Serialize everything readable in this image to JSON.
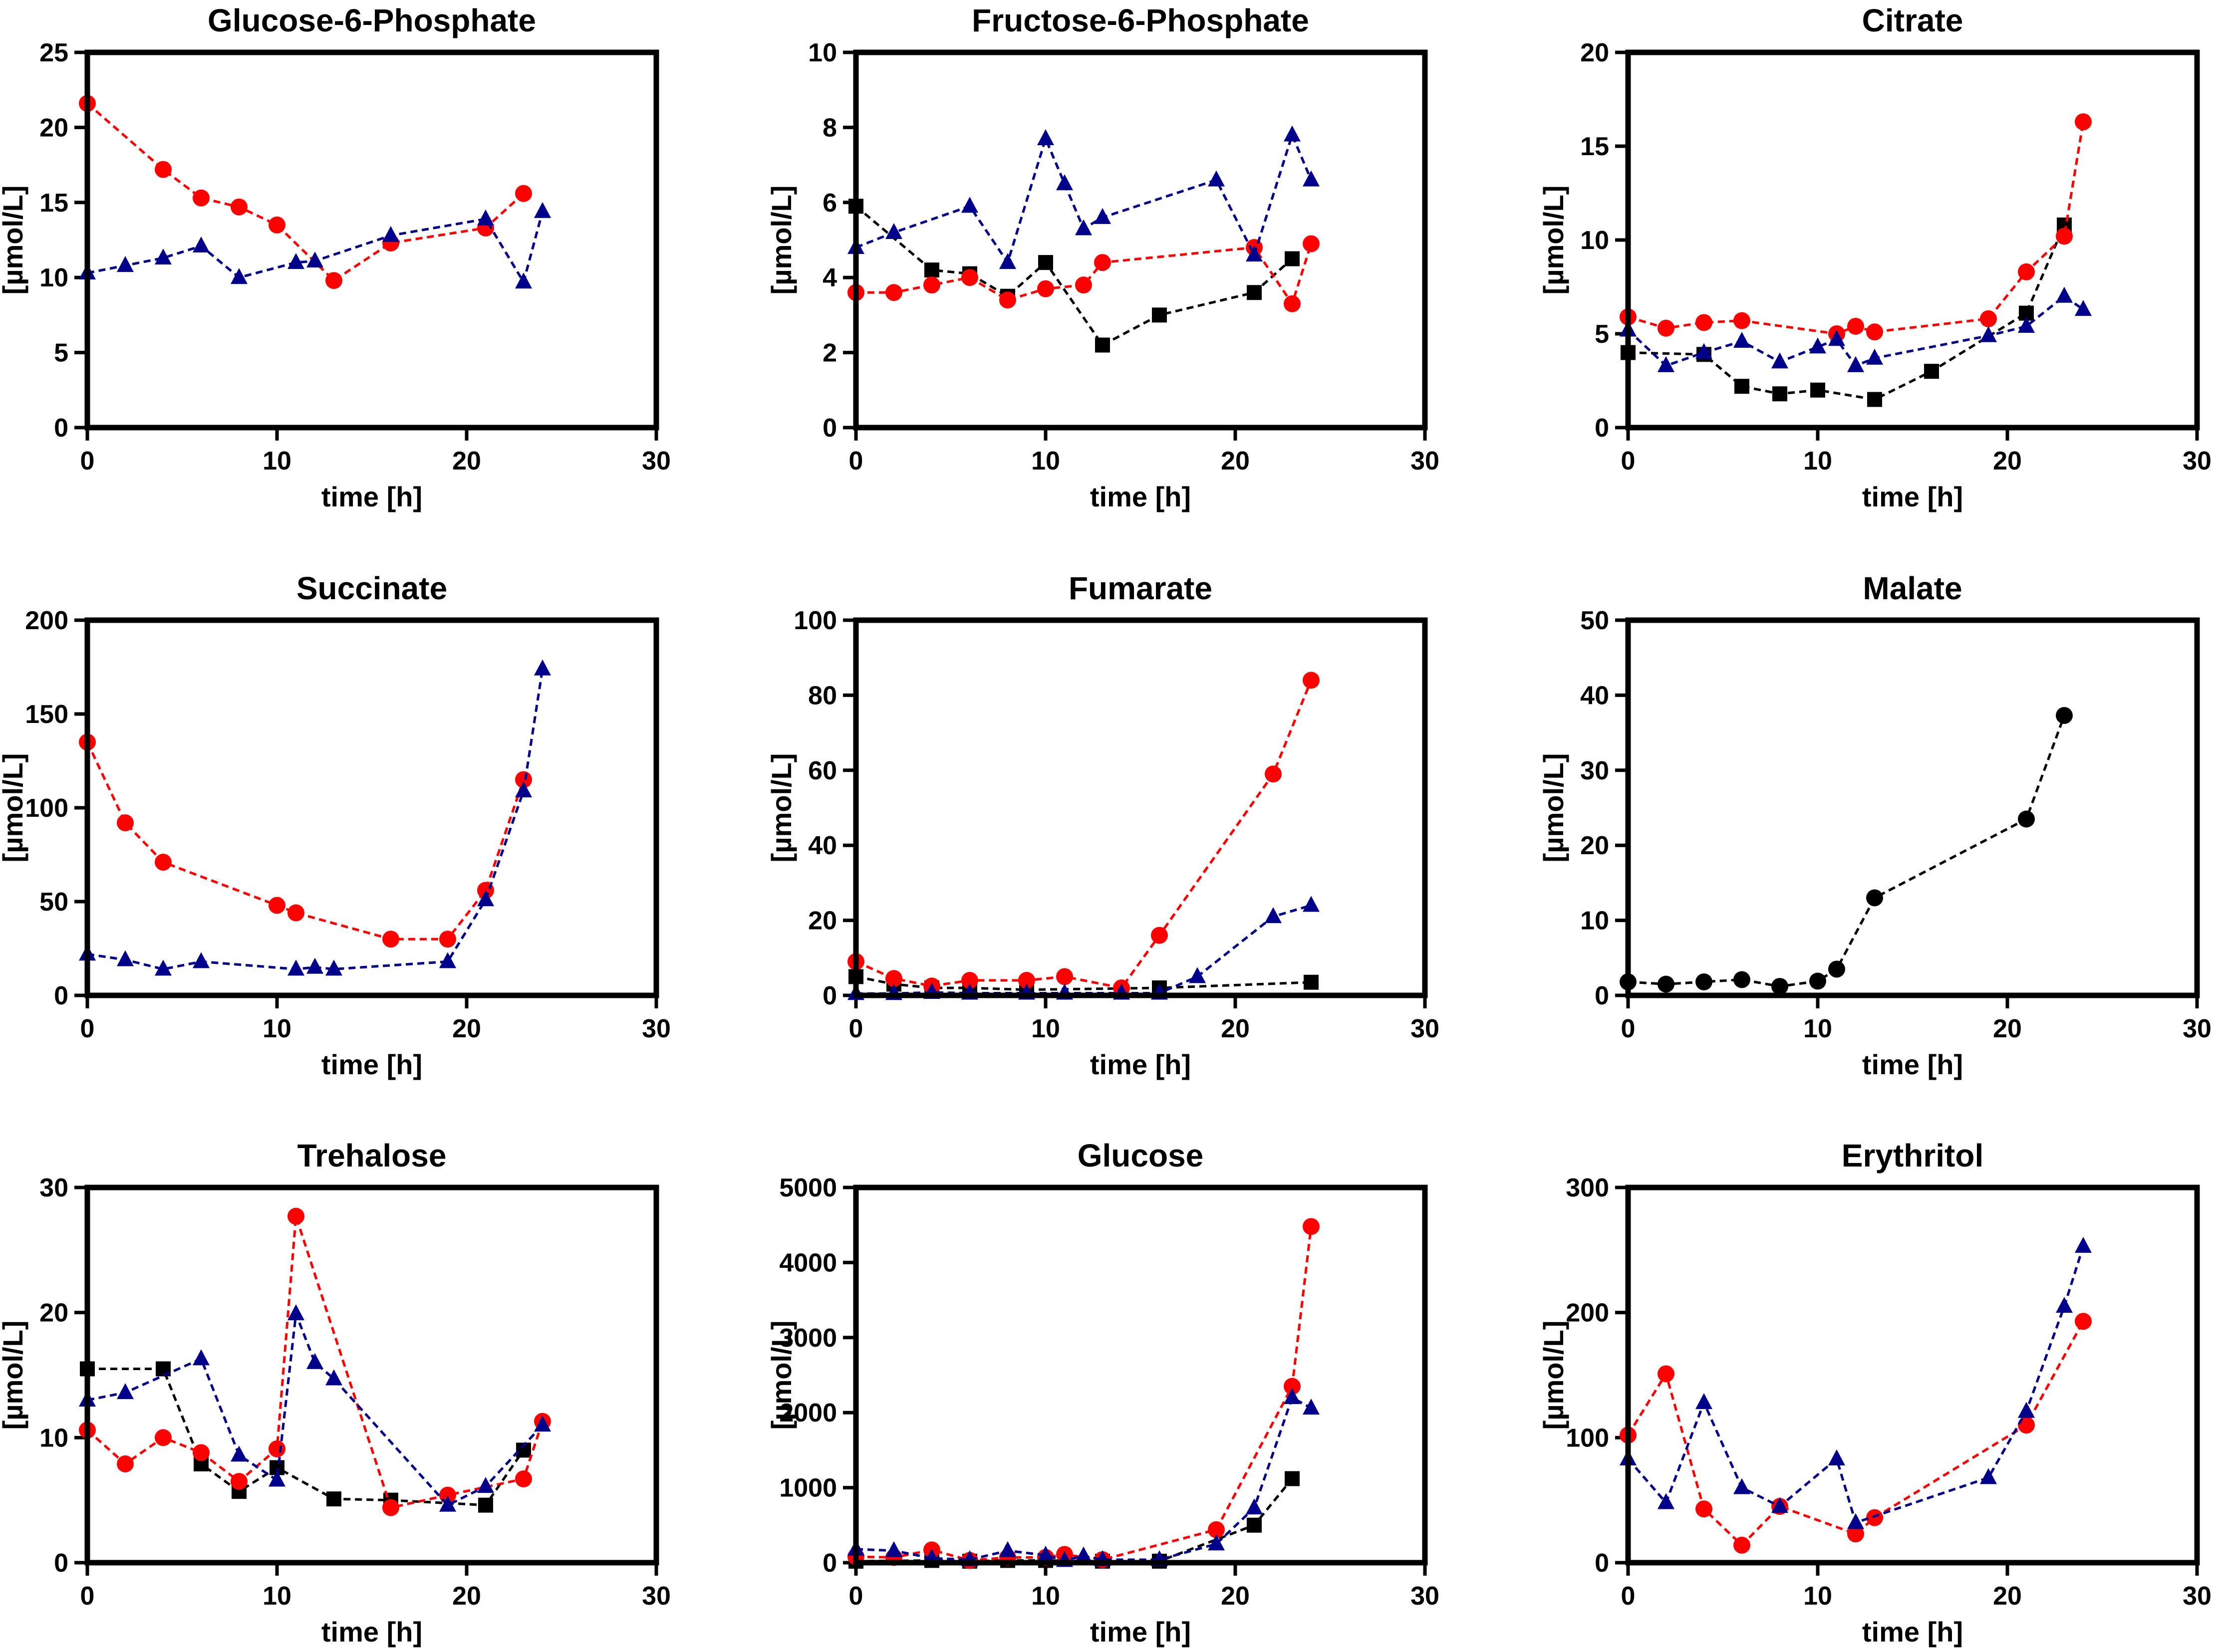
{
  "colors": {
    "red": "#ff0000",
    "blue": "#00008b",
    "black": "#000000"
  },
  "chart_data": [
    {
      "type": "line",
      "title": "Glucose-6-Phosphate",
      "xlabel": "time [h]",
      "ylabel": "[µmol/L]",
      "xlim": [
        0,
        30
      ],
      "ylim": [
        0,
        25
      ],
      "xticks": [
        "0",
        "10",
        "20",
        "30"
      ],
      "yticks": [
        "0",
        "5",
        "10",
        "15",
        "20",
        "25"
      ],
      "series": [
        {
          "name": "red-circles",
          "marker": "circle",
          "color": "red",
          "x": [
            0,
            4,
            6,
            8,
            10,
            13,
            16,
            21,
            23
          ],
          "y": [
            21.6,
            17.2,
            15.3,
            14.7,
            13.5,
            9.8,
            12.3,
            13.3,
            15.6
          ]
        },
        {
          "name": "blue-triangles",
          "marker": "triangle",
          "color": "blue",
          "x": [
            0,
            2,
            4,
            6,
            8,
            11,
            12,
            16,
            21,
            23,
            24
          ],
          "y": [
            10.3,
            10.8,
            11.3,
            12.1,
            10.0,
            11.0,
            11.1,
            12.8,
            13.9,
            9.7,
            14.4
          ]
        }
      ]
    },
    {
      "type": "line",
      "title": "Fructose-6-Phosphate",
      "xlabel": "time [h]",
      "ylabel": "[µmol/L]",
      "xlim": [
        0,
        30
      ],
      "ylim": [
        0,
        10
      ],
      "xticks": [
        "0",
        "10",
        "20",
        "30"
      ],
      "yticks": [
        "0",
        "2",
        "4",
        "6",
        "8",
        "10"
      ],
      "series": [
        {
          "name": "black-squares",
          "marker": "square",
          "color": "black",
          "x": [
            0,
            4,
            6,
            8,
            10,
            13,
            16,
            21,
            23
          ],
          "y": [
            5.9,
            4.2,
            4.1,
            3.5,
            4.4,
            2.2,
            3.0,
            3.6,
            4.5
          ]
        },
        {
          "name": "red-circles",
          "marker": "circle",
          "color": "red",
          "x": [
            0,
            2,
            4,
            6,
            8,
            10,
            12,
            13,
            21,
            23,
            24
          ],
          "y": [
            3.6,
            3.6,
            3.8,
            4.0,
            3.4,
            3.7,
            3.8,
            4.4,
            4.8,
            3.3,
            4.9
          ]
        },
        {
          "name": "blue-triangles",
          "marker": "triangle",
          "color": "blue",
          "x": [
            0,
            2,
            6,
            8,
            10,
            11,
            12,
            13,
            19,
            21,
            23,
            24
          ],
          "y": [
            4.8,
            5.2,
            5.9,
            4.4,
            7.7,
            6.5,
            5.3,
            5.6,
            6.6,
            4.6,
            7.8,
            6.6
          ]
        }
      ]
    },
    {
      "type": "line",
      "title": "Citrate",
      "xlabel": "time [h]",
      "ylabel": "[µmol/L]",
      "xlim": [
        0,
        30
      ],
      "ylim": [
        0,
        20
      ],
      "xticks": [
        "0",
        "10",
        "20",
        "30"
      ],
      "yticks": [
        "0",
        "5",
        "10",
        "15",
        "20"
      ],
      "series": [
        {
          "name": "black-squares",
          "marker": "square",
          "color": "black",
          "x": [
            0,
            4,
            6,
            8,
            10,
            13,
            16,
            21,
            23
          ],
          "y": [
            4.0,
            3.9,
            2.2,
            1.8,
            2.0,
            1.5,
            3.0,
            6.1,
            10.8
          ]
        },
        {
          "name": "red-circles",
          "marker": "circle",
          "color": "red",
          "x": [
            0,
            2,
            4,
            6,
            11,
            12,
            13,
            19,
            21,
            23,
            24
          ],
          "y": [
            5.9,
            5.3,
            5.6,
            5.7,
            5.0,
            5.4,
            5.1,
            5.8,
            8.3,
            10.2,
            16.3
          ]
        },
        {
          "name": "blue-triangles",
          "marker": "triangle",
          "color": "blue",
          "x": [
            0,
            2,
            4,
            6,
            8,
            10,
            11,
            12,
            13,
            19,
            21,
            23,
            24
          ],
          "y": [
            5.2,
            3.3,
            4.0,
            4.6,
            3.5,
            4.3,
            4.7,
            3.3,
            3.7,
            4.9,
            5.4,
            7.0,
            6.3
          ]
        }
      ]
    },
    {
      "type": "line",
      "title": "Succinate",
      "xlabel": "time [h]",
      "ylabel": "[µmol/L]",
      "xlim": [
        0,
        30
      ],
      "ylim": [
        0,
        200
      ],
      "xticks": [
        "0",
        "10",
        "20",
        "30"
      ],
      "yticks": [
        "0",
        "50",
        "100",
        "150",
        "200"
      ],
      "series": [
        {
          "name": "red-circles",
          "marker": "circle",
          "color": "red",
          "x": [
            0,
            2,
            4,
            10,
            11,
            16,
            19,
            21,
            23
          ],
          "y": [
            135,
            92,
            71,
            48,
            44,
            30,
            30,
            56,
            115
          ]
        },
        {
          "name": "blue-triangles",
          "marker": "triangle",
          "color": "blue",
          "x": [
            0,
            2,
            4,
            6,
            11,
            12,
            13,
            19,
            21,
            23,
            24
          ],
          "y": [
            22,
            19,
            14,
            18,
            14,
            15,
            14,
            18,
            51,
            109,
            174
          ]
        }
      ]
    },
    {
      "type": "line",
      "title": "Fumarate",
      "xlabel": "time [h]",
      "ylabel": "[µmol/L]",
      "xlim": [
        0,
        30
      ],
      "ylim": [
        0,
        100
      ],
      "xticks": [
        "0",
        "10",
        "20",
        "30"
      ],
      "yticks": [
        "0",
        "20",
        "40",
        "60",
        "80",
        "100"
      ],
      "series": [
        {
          "name": "black-squares",
          "marker": "square",
          "color": "black",
          "x": [
            0,
            2,
            4,
            6,
            9,
            16,
            24
          ],
          "y": [
            5,
            3,
            2,
            2,
            1.5,
            2,
            3.5
          ]
        },
        {
          "name": "red-circles",
          "marker": "circle",
          "color": "red",
          "x": [
            0,
            2,
            4,
            6,
            9,
            11,
            14,
            16,
            22,
            24
          ],
          "y": [
            9,
            4.5,
            2.5,
            4,
            4,
            5,
            2,
            16,
            59,
            84
          ]
        },
        {
          "name": "blue-triangles",
          "marker": "triangle",
          "color": "blue",
          "x": [
            0,
            2,
            4,
            6,
            9,
            11,
            14,
            16,
            18,
            22,
            24
          ],
          "y": [
            0.5,
            0.5,
            0.8,
            0.6,
            0.6,
            0.6,
            0.6,
            0.6,
            5,
            21,
            24
          ]
        }
      ]
    },
    {
      "type": "line",
      "title": "Malate",
      "xlabel": "time [h]",
      "ylabel": "[µmol/L]",
      "xlim": [
        0,
        30
      ],
      "ylim": [
        0,
        50
      ],
      "xticks": [
        "0",
        "10",
        "20",
        "30"
      ],
      "yticks": [
        "0",
        "10",
        "20",
        "30",
        "40",
        "50"
      ],
      "series": [
        {
          "name": "black-circles",
          "marker": "circle",
          "color": "black",
          "x": [
            0,
            2,
            4,
            6,
            8,
            10,
            11,
            13,
            21,
            23
          ],
          "y": [
            1.8,
            1.5,
            1.8,
            2.1,
            1.2,
            1.9,
            3.5,
            13,
            23.5,
            37.3
          ]
        }
      ]
    },
    {
      "type": "line",
      "title": "Trehalose",
      "xlabel": "time [h]",
      "ylabel": "[µmol/L]",
      "xlim": [
        0,
        30
      ],
      "ylim": [
        0,
        30
      ],
      "xticks": [
        "0",
        "10",
        "20",
        "30"
      ],
      "yticks": [
        "0",
        "10",
        "20",
        "30"
      ],
      "series": [
        {
          "name": "black-squares",
          "marker": "square",
          "color": "black",
          "x": [
            0,
            4,
            6,
            8,
            10,
            13,
            16,
            21,
            23
          ],
          "y": [
            15.5,
            15.5,
            7.9,
            5.7,
            7.6,
            5.1,
            5.0,
            4.6,
            9.0
          ]
        },
        {
          "name": "red-circles",
          "marker": "circle",
          "color": "red",
          "x": [
            0,
            2,
            4,
            6,
            8,
            10,
            11,
            16,
            19,
            23,
            24
          ],
          "y": [
            10.6,
            7.9,
            10.0,
            8.8,
            6.5,
            9.1,
            27.7,
            4.4,
            5.4,
            6.7,
            11.3
          ]
        },
        {
          "name": "blue-triangles",
          "marker": "triangle",
          "color": "blue",
          "x": [
            0,
            2,
            6,
            8,
            10,
            11,
            12,
            13,
            19,
            21,
            24
          ],
          "y": [
            13.0,
            13.6,
            16.3,
            8.6,
            6.6,
            19.9,
            16.0,
            14.7,
            4.6,
            6.1,
            11.0
          ]
        }
      ]
    },
    {
      "type": "line",
      "title": "Glucose",
      "xlabel": "time [h]",
      "ylabel": "[µmol/L]",
      "xlim": [
        0,
        30
      ],
      "ylim": [
        0,
        5000
      ],
      "xticks": [
        "0",
        "10",
        "20",
        "30"
      ],
      "yticks": [
        "0",
        "1000",
        "2000",
        "3000",
        "4000",
        "5000"
      ],
      "series": [
        {
          "name": "black-squares",
          "marker": "square",
          "color": "black",
          "x": [
            0,
            4,
            6,
            8,
            10,
            13,
            16,
            21,
            23
          ],
          "y": [
            20,
            30,
            20,
            30,
            30,
            20,
            20,
            500,
            1120
          ]
        },
        {
          "name": "red-circles",
          "marker": "circle",
          "color": "red",
          "x": [
            0,
            2,
            4,
            6,
            8,
            10,
            11,
            13,
            19,
            23,
            24
          ],
          "y": [
            80,
            70,
            170,
            30,
            70,
            70,
            110,
            40,
            440,
            2350,
            4480
          ]
        },
        {
          "name": "blue-triangles",
          "marker": "triangle",
          "color": "blue",
          "x": [
            0,
            2,
            4,
            6,
            8,
            10,
            11,
            12,
            13,
            16,
            19,
            21,
            23,
            24
          ],
          "y": [
            180,
            160,
            60,
            40,
            160,
            100,
            30,
            90,
            40,
            40,
            250,
            730,
            2200,
            2060
          ]
        }
      ]
    },
    {
      "type": "line",
      "title": "Erythritol",
      "xlabel": "time [h]",
      "ylabel": "[µmol/L]",
      "xlim": [
        0,
        30
      ],
      "ylim": [
        0,
        300
      ],
      "xticks": [
        "0",
        "10",
        "20",
        "30"
      ],
      "yticks": [
        "0",
        "100",
        "200",
        "300"
      ],
      "series": [
        {
          "name": "red-circles",
          "marker": "circle",
          "color": "red",
          "x": [
            0,
            2,
            4,
            6,
            8,
            12,
            13,
            21,
            24
          ],
          "y": [
            102,
            151,
            43,
            14,
            45,
            23,
            36,
            110,
            193
          ]
        },
        {
          "name": "blue-triangles",
          "marker": "triangle",
          "color": "blue",
          "x": [
            0,
            2,
            4,
            6,
            8,
            11,
            12,
            19,
            21,
            23,
            24
          ],
          "y": [
            83,
            48,
            128,
            60,
            45,
            83,
            32,
            68,
            121,
            205,
            253
          ]
        }
      ]
    }
  ]
}
